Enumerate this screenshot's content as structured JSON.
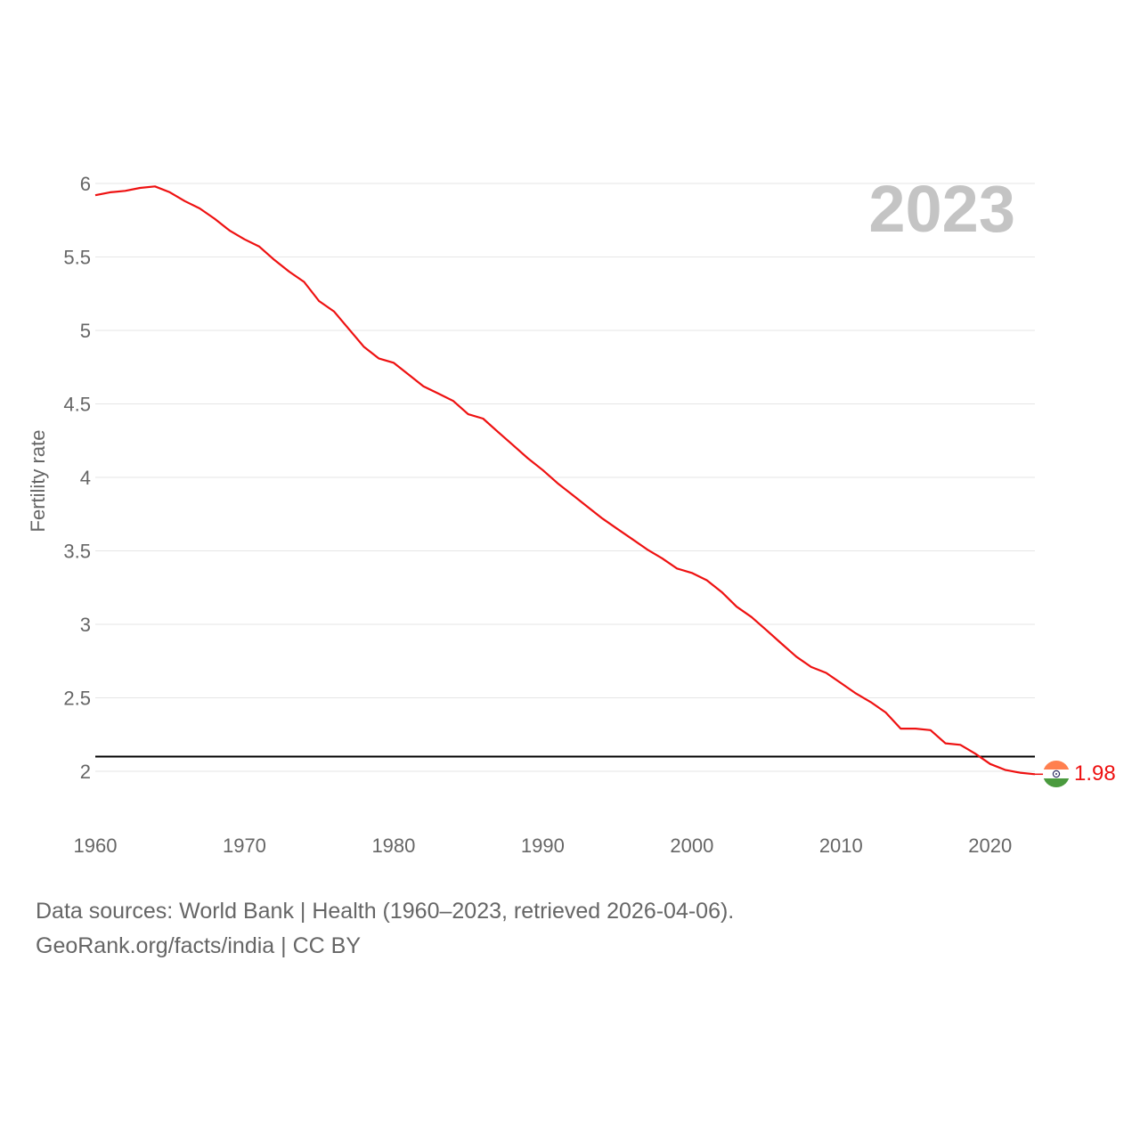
{
  "chart_data": {
    "type": "line",
    "title": "",
    "xlabel": "",
    "ylabel": "Fertility rate",
    "xlim": [
      1960,
      2023
    ],
    "ylim": [
      1.8,
      6.1
    ],
    "x_ticks": [
      1960,
      1970,
      1980,
      1990,
      2000,
      2010,
      2020
    ],
    "y_ticks": [
      2,
      2.5,
      3,
      3.5,
      4,
      4.5,
      5,
      5.5,
      6
    ],
    "y_tick_labels": [
      "2",
      "2.5",
      "3",
      "3.5",
      "4",
      "4.5",
      "5",
      "5.5",
      "6"
    ],
    "x_tick_labels": [
      "1960",
      "1970",
      "1980",
      "1990",
      "2000",
      "2010",
      "2020"
    ],
    "year_label": "2023",
    "reference_line": {
      "y": 2.1,
      "color": "#000000"
    },
    "grid": true,
    "series": [
      {
        "name": "India",
        "color": "#ee1111",
        "x": [
          1960,
          1961,
          1962,
          1963,
          1964,
          1965,
          1966,
          1967,
          1968,
          1969,
          1970,
          1971,
          1972,
          1973,
          1974,
          1975,
          1976,
          1977,
          1978,
          1979,
          1980,
          1981,
          1982,
          1983,
          1984,
          1985,
          1986,
          1987,
          1988,
          1989,
          1990,
          1991,
          1992,
          1993,
          1994,
          1995,
          1996,
          1997,
          1998,
          1999,
          2000,
          2001,
          2002,
          2003,
          2004,
          2005,
          2006,
          2007,
          2008,
          2009,
          2010,
          2011,
          2012,
          2013,
          2014,
          2015,
          2016,
          2017,
          2018,
          2019,
          2020,
          2021,
          2022,
          2023
        ],
        "values": [
          5.92,
          5.94,
          5.95,
          5.97,
          5.98,
          5.94,
          5.88,
          5.83,
          5.76,
          5.68,
          5.62,
          5.57,
          5.48,
          5.4,
          5.33,
          5.2,
          5.13,
          5.01,
          4.89,
          4.81,
          4.78,
          4.7,
          4.62,
          4.57,
          4.52,
          4.43,
          4.4,
          4.31,
          4.22,
          4.13,
          4.05,
          3.96,
          3.88,
          3.8,
          3.72,
          3.65,
          3.58,
          3.51,
          3.45,
          3.38,
          3.35,
          3.3,
          3.22,
          3.12,
          3.05,
          2.96,
          2.87,
          2.78,
          2.71,
          2.67,
          2.6,
          2.53,
          2.47,
          2.4,
          2.29,
          2.29,
          2.28,
          2.19,
          2.18,
          2.12,
          2.05,
          2.01,
          1.99,
          1.98
        ]
      }
    ],
    "end_label": "1.98"
  },
  "footer": {
    "line1": "Data sources: World Bank | Health (1960–2023, retrieved 2026-04-06).",
    "line2": "GeoRank.org/facts/india | CC BY"
  },
  "colors": {
    "line": "#ee1111",
    "grid": "#e6e6e6",
    "text": "#666666",
    "year": "#c4c4c4",
    "flag_saffron": "#ff7f4f",
    "flag_white": "#ffffff",
    "flag_green": "#4a9a3e",
    "flag_wheel": "#333366"
  },
  "flag_icon": "india-flag-icon"
}
